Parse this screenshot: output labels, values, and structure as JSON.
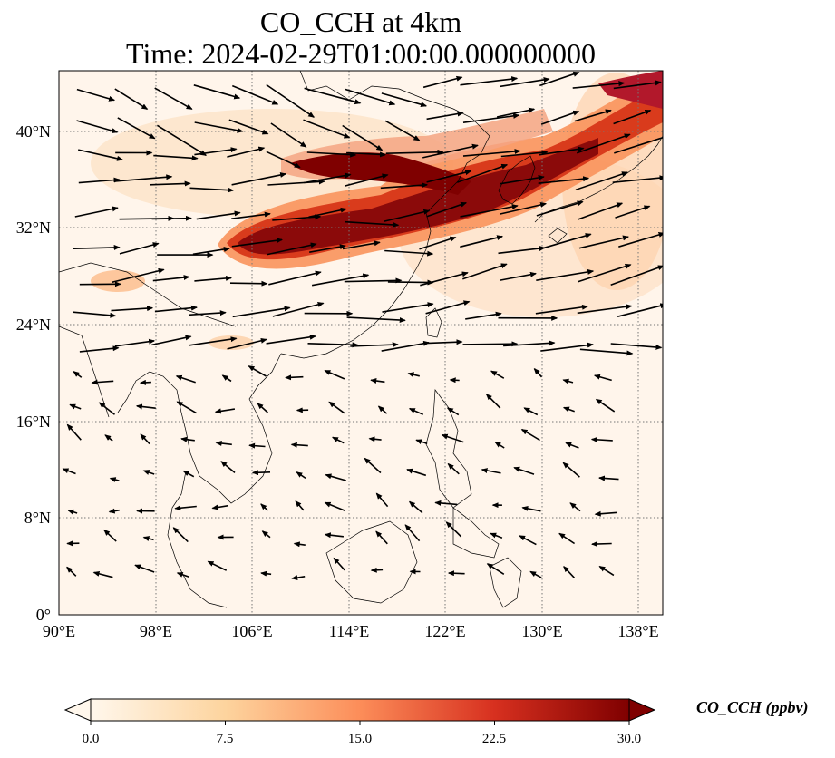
{
  "title": {
    "line1": "CO_CCH at 4km",
    "line2": "Time: 2024-02-29T01:00:00.000000000"
  },
  "map": {
    "lon_range": [
      90,
      140
    ],
    "lat_range": [
      0,
      45
    ],
    "lon_ticks": [
      90,
      98,
      106,
      114,
      122,
      130,
      138
    ],
    "lat_ticks": [
      0,
      8,
      16,
      24,
      32,
      40
    ],
    "lon_tick_labels": [
      "90°E",
      "98°E",
      "106°E",
      "114°E",
      "122°E",
      "130°E",
      "138°E"
    ],
    "lat_tick_labels": [
      "0°",
      "8°N",
      "16°N",
      "24°N",
      "32°N",
      "40°N"
    ],
    "grid": "dotted",
    "background_color": "#fff5eb",
    "plume_colors": [
      "#fdd9b4",
      "#f9935c",
      "#d93b1c",
      "#a50f15",
      "#7f0000"
    ],
    "wind_vectors": "black arrows, westerly flow north of 20°N, weak easterlies south"
  },
  "colorbar": {
    "label": "CO_CCH (ppbv)",
    "min": 0.0,
    "max": 30.0,
    "ticks": [
      "0.0",
      "7.5",
      "15.0",
      "22.5",
      "30.0"
    ],
    "colormap": "OrRd",
    "extend": "both"
  }
}
